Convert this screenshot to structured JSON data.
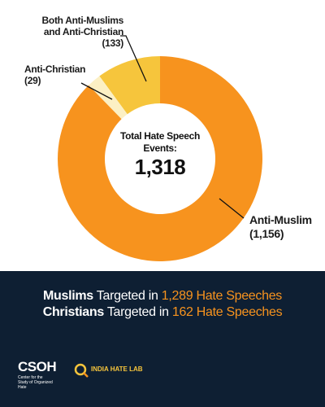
{
  "chart_data": {
    "type": "donut",
    "categories": [
      "Anti-Muslim",
      "Anti-Christian",
      "Both Anti-Muslims and Anti-Christian"
    ],
    "values": [
      1156,
      29,
      133
    ],
    "value_labels": [
      "(1,156)",
      "(29)",
      "(133)"
    ],
    "colors": [
      "#f7931e",
      "#fcf0c4",
      "#f6c53c"
    ],
    "center_label": "Total Hate Speech Events:",
    "total": {
      "value": 1318,
      "label": "1,318"
    }
  },
  "footer": {
    "lines": [
      {
        "group": "Muslims",
        "verb": "Targeted in",
        "highlight": "1,289 Hate Speeches"
      },
      {
        "group": "Christians",
        "verb": "Targeted in",
        "highlight": "162 Hate Speeches"
      }
    ],
    "logos": {
      "csoh": "CSOH",
      "csoh_name": "Center for the Study of Organized Hate",
      "ihl": "INDIA HATE LAB"
    }
  }
}
